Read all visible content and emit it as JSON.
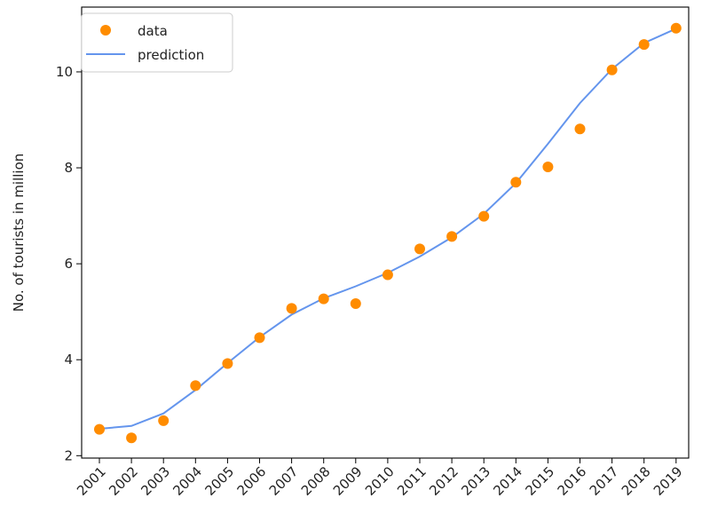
{
  "chart_data": {
    "type": "scatter",
    "title": "",
    "xlabel": "",
    "ylabel": "No. of tourists in million",
    "categories": [
      "2001",
      "2002",
      "2003",
      "2004",
      "2005",
      "2006",
      "2007",
      "2008",
      "2009",
      "2010",
      "2011",
      "2012",
      "2013",
      "2014",
      "2015",
      "2016",
      "2017",
      "2018",
      "2019"
    ],
    "ylim": [
      1.95,
      11.35
    ],
    "yticks": [
      2,
      4,
      6,
      8,
      10
    ],
    "grid": false,
    "legend_position": "upper-left",
    "series": [
      {
        "name": "data",
        "kind": "scatter",
        "color": "#ff8c00",
        "values": [
          2.55,
          2.37,
          2.73,
          3.46,
          3.92,
          4.46,
          5.07,
          5.27,
          5.17,
          5.77,
          6.31,
          6.57,
          6.99,
          7.7,
          8.02,
          8.81,
          10.04,
          10.57,
          10.91
        ]
      },
      {
        "name": "prediction",
        "kind": "line",
        "color": "#6495ed",
        "values": [
          2.56,
          2.62,
          2.88,
          3.37,
          3.93,
          4.47,
          4.94,
          5.28,
          5.53,
          5.81,
          6.15,
          6.55,
          7.04,
          7.68,
          8.5,
          9.35,
          10.06,
          10.6,
          10.9
        ]
      }
    ]
  }
}
